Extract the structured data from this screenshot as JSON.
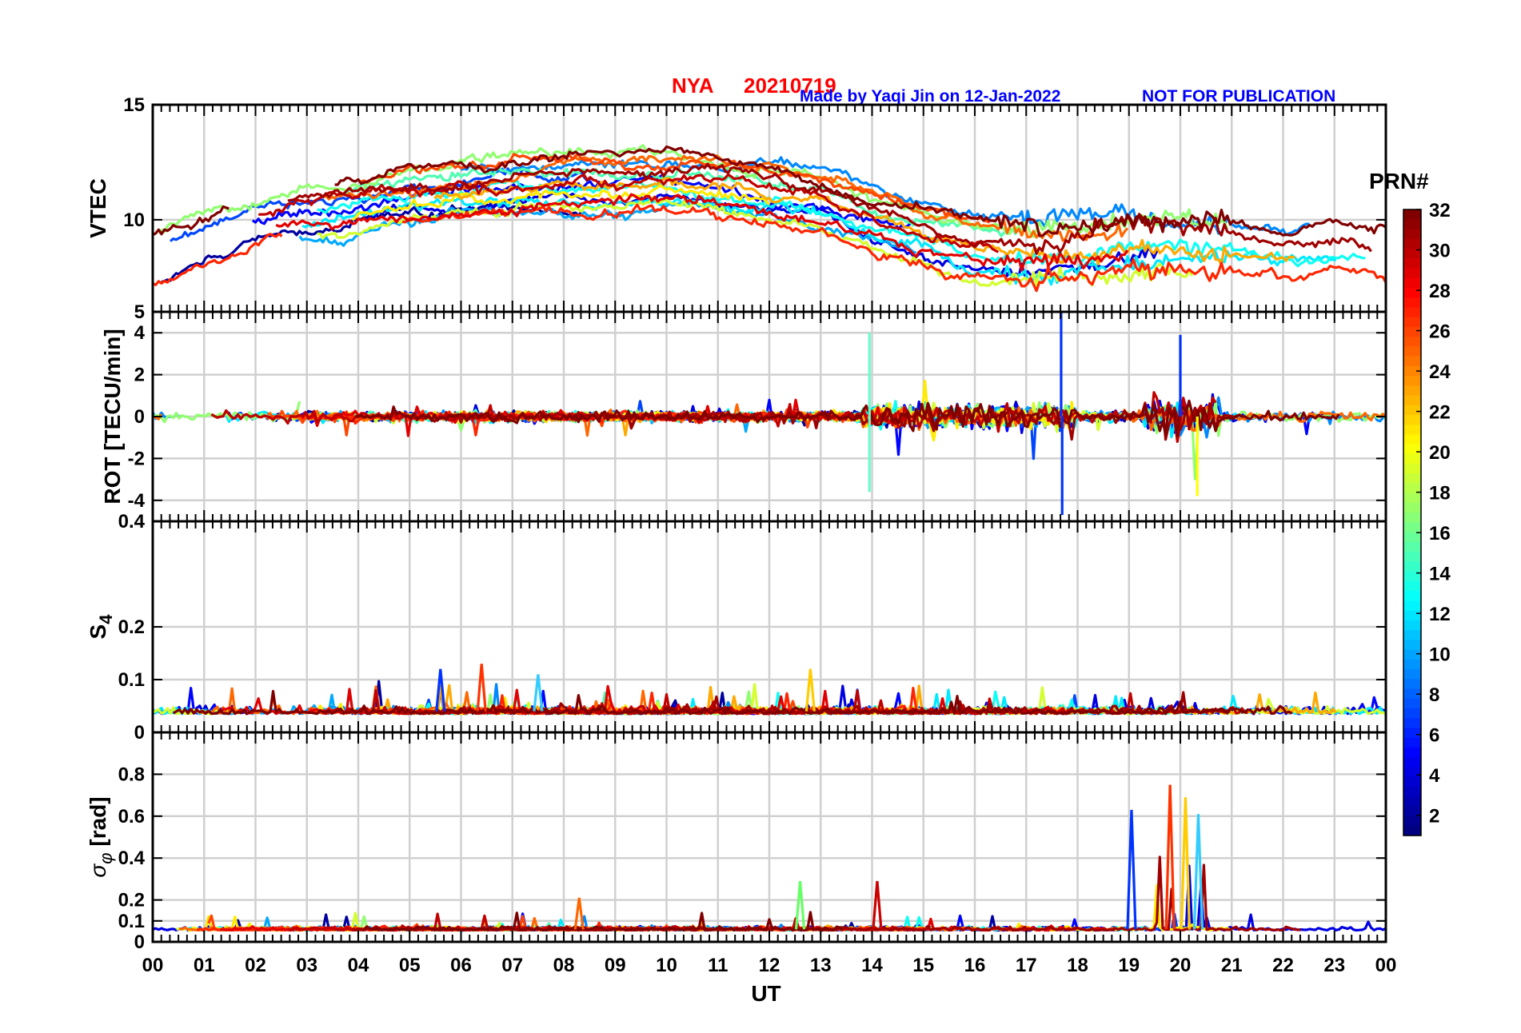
{
  "header": {
    "station": "NYA",
    "date": "20210719",
    "credit": "Made by Yaqi Jin on 12-Jan-2022",
    "notice": "NOT FOR PUBLICATION"
  },
  "x_axis": {
    "label": "UT",
    "range": [
      0,
      24
    ],
    "tick_labels": [
      "00",
      "01",
      "02",
      "03",
      "04",
      "05",
      "06",
      "07",
      "08",
      "09",
      "10",
      "11",
      "12",
      "13",
      "14",
      "15",
      "16",
      "17",
      "18",
      "19",
      "20",
      "21",
      "22",
      "23",
      "00"
    ]
  },
  "colorbar": {
    "title": "PRN#",
    "range": [
      1,
      32
    ],
    "tick_labels": [
      "32",
      "30",
      "28",
      "26",
      "24",
      "22",
      "20",
      "18",
      "16",
      "14",
      "12",
      "10",
      "8",
      "6",
      "4",
      "2"
    ]
  },
  "chart_data": [
    {
      "type": "line",
      "id": "vtec",
      "ylabel": "VTEC",
      "ylim": [
        6,
        15
      ],
      "ytick_labels": [
        "15",
        "10"
      ],
      "ytick_values": [
        15,
        10
      ],
      "grid": true,
      "description_values": {
        "baseline_by_hour": [
          8.2,
          9.0,
          10.0,
          10.3,
          10.6,
          10.9,
          11.1,
          11.3,
          11.4,
          11.5,
          11.6,
          11.4,
          11.2,
          10.8,
          10.0,
          9.4,
          8.9,
          8.6,
          8.7,
          8.9,
          8.9,
          8.7,
          8.3,
          8.5,
          8.6
        ],
        "series_count": 16
      }
    },
    {
      "type": "line",
      "id": "rot",
      "ylabel": "ROT [TECU/min]",
      "ylim": [
        -5,
        5
      ],
      "ytick_labels": [
        "5",
        "4",
        "2",
        "0",
        "-2",
        "-4"
      ],
      "ytick_values": [
        5,
        4,
        2,
        0,
        -2,
        -4
      ],
      "grid": true,
      "description_values": {
        "peak_positive": 5.0,
        "peak_negative": -4.7,
        "active_intervals_UT": [
          [
            13.8,
            18.0
          ],
          [
            19.3,
            20.8
          ]
        ]
      }
    },
    {
      "type": "line",
      "id": "s4",
      "ylabel": "S4",
      "ylabel_main": "S",
      "ylabel_sub": "4",
      "ylim": [
        0,
        0.4
      ],
      "ytick_labels": [
        "0.4",
        "0.2",
        "0.1",
        "0"
      ],
      "ytick_values": [
        0.4,
        0.2,
        0.1,
        0
      ],
      "grid": true,
      "description_values": {
        "typical_level": 0.04,
        "peaks": [
          [
            5.6,
            0.12
          ],
          [
            6.4,
            0.13
          ],
          [
            12.8,
            0.12
          ],
          [
            7.5,
            0.11
          ]
        ]
      }
    },
    {
      "type": "line",
      "id": "sigma_phi",
      "ylabel": "σφ [rad]",
      "ylabel_main": "σ",
      "ylabel_sub": "φ",
      "ylabel_unit": "[rad]",
      "ylim": [
        0,
        1
      ],
      "ytick_labels": [
        "0.8",
        "0.6",
        "0.4",
        "0.2",
        "0.1",
        "0"
      ],
      "ytick_values": [
        0.8,
        0.6,
        0.4,
        0.2,
        0.1,
        0
      ],
      "grid": true,
      "description_values": {
        "typical_level": 0.06,
        "peaks": [
          [
            19.05,
            0.63
          ],
          [
            19.8,
            0.75
          ],
          [
            20.1,
            0.69
          ],
          [
            20.35,
            0.61
          ],
          [
            14.1,
            0.29
          ],
          [
            12.6,
            0.29
          ],
          [
            8.3,
            0.21
          ]
        ]
      }
    }
  ]
}
